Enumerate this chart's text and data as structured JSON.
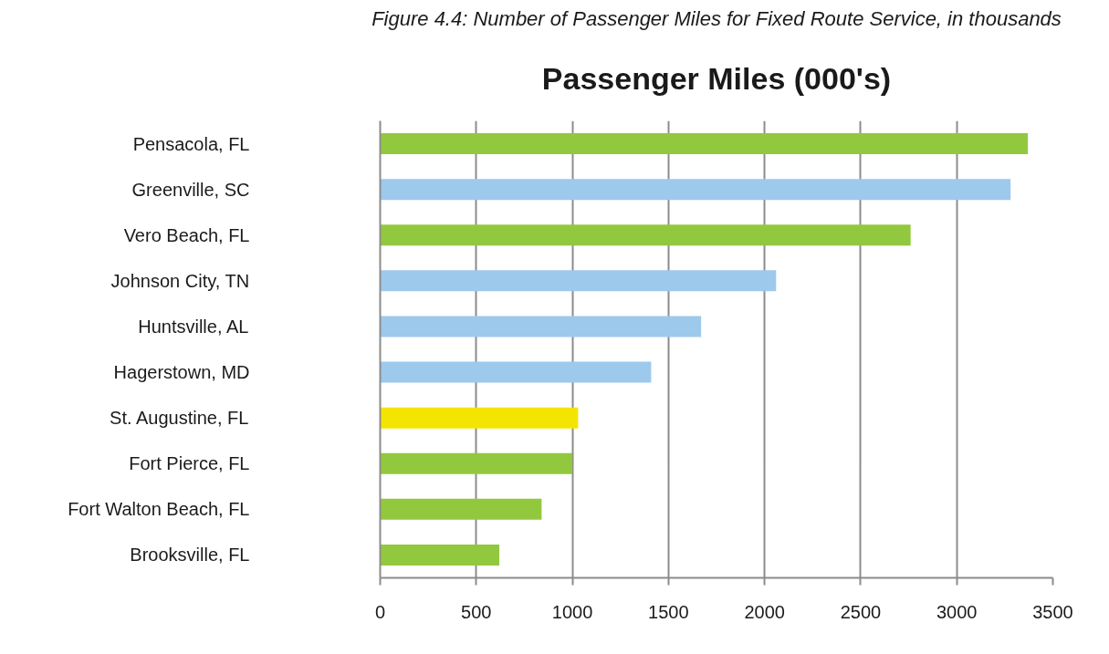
{
  "chart_data": {
    "type": "bar",
    "orientation": "horizontal",
    "title": "Passenger Miles (000's)",
    "annotations": [
      "Figure 4.4: Number of Passenger Miles for Fixed Route Service, in thousands"
    ],
    "categories": [
      "Pensacola, FL",
      "Greenville, SC",
      "Vero Beach, FL",
      "Johnson City, TN",
      "Huntsville, AL",
      "Hagerstown, MD",
      "St. Augustine, FL",
      "Fort Pierce, FL",
      "Fort Walton Beach, FL",
      "Brooksville, FL"
    ],
    "values": [
      3370,
      3280,
      2760,
      2060,
      1670,
      1410,
      1030,
      1000,
      840,
      620
    ],
    "colors": [
      "#92c83e",
      "#9dc9ec",
      "#92c83e",
      "#9dc9ec",
      "#9dc9ec",
      "#9dc9ec",
      "#f4e500",
      "#92c83e",
      "#92c83e",
      "#92c83e"
    ],
    "xlim": [
      0,
      3500
    ],
    "xticks": [
      0,
      500,
      1000,
      1500,
      2000,
      2500,
      3000,
      3500
    ],
    "grid": "x"
  }
}
